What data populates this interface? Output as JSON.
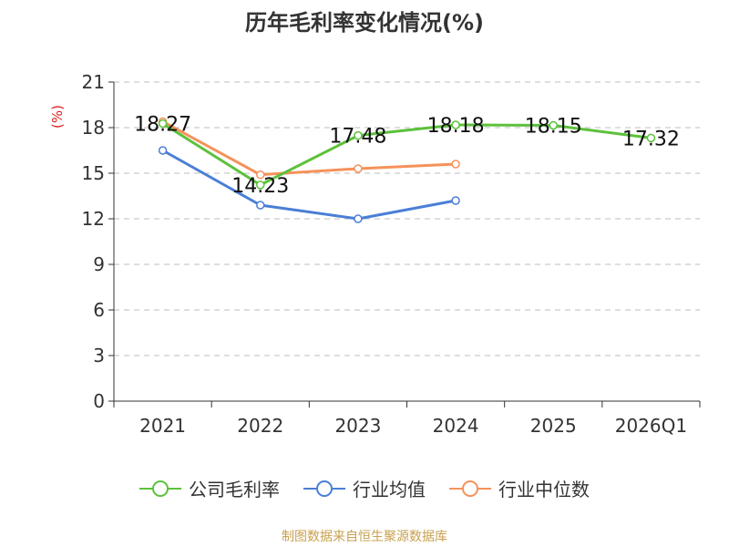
{
  "chart_data": {
    "type": "line",
    "title": "历年毛利率变化情况(%)",
    "ylabel": "(%)",
    "xlabel": "",
    "categories": [
      "2021",
      "2022",
      "2023",
      "2024",
      "2025",
      "2026Q1"
    ],
    "ylim": [
      0,
      21
    ],
    "yticks": [
      0,
      3,
      6,
      9,
      12,
      15,
      18,
      21
    ],
    "grid": true,
    "legend_position": "bottom",
    "series": [
      {
        "name": "公司毛利率",
        "color": "#5cc13b",
        "values": [
          18.27,
          14.23,
          17.48,
          18.18,
          18.15,
          17.32
        ],
        "labels": [
          "18.27",
          "14.23",
          "17.48",
          "18.18",
          "18.15",
          "17.32"
        ]
      },
      {
        "name": "行业均值",
        "color": "#4a7fd6",
        "values": [
          16.5,
          12.9,
          12.0,
          13.2,
          null,
          null
        ]
      },
      {
        "name": "行业中位数",
        "color": "#f5925a",
        "values": [
          18.4,
          14.9,
          15.3,
          15.6,
          null,
          null
        ]
      }
    ],
    "source": "制图数据来自恒生聚源数据库"
  }
}
